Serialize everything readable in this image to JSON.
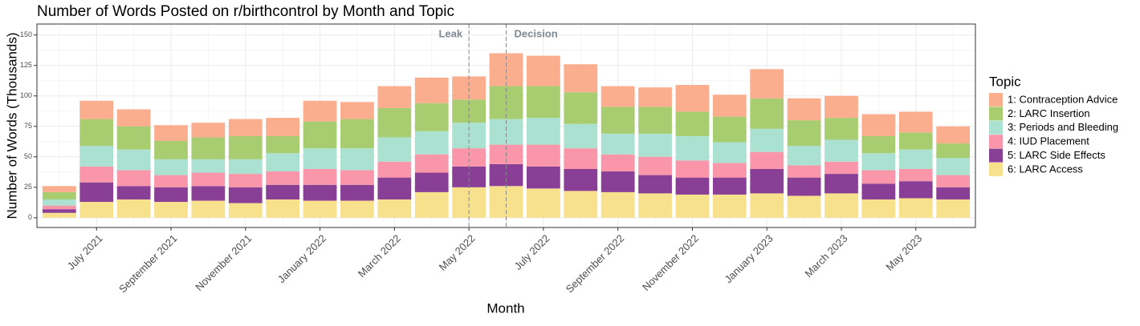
{
  "chart_data": {
    "type": "stacked_bar",
    "title": "Number of Words Posted on r/birthcontrol by Month and Topic",
    "x_label": "Month",
    "y_label": "Number of Words (Thousands)",
    "legend_title": "Topic",
    "legend_position": "right",
    "grid": true,
    "categories": [
      null,
      "July 2021",
      null,
      "September 2021",
      null,
      "November 2021",
      null,
      "January 2022",
      null,
      "March 2022",
      null,
      "May 2022",
      null,
      "July 2022",
      null,
      "September 2022",
      null,
      "November 2022",
      null,
      "January 2023",
      null,
      "March 2023",
      null,
      "May 2023",
      null
    ],
    "ylim": [
      -8,
      159
    ],
    "yticks": [
      0,
      25,
      50,
      75,
      100,
      125,
      150
    ],
    "annotations": [
      {
        "label": "Leak"
      },
      {
        "label": "Decision"
      }
    ],
    "series": [
      {
        "name": "6: LARC Access",
        "color": "#f8e18d",
        "values": [
          4,
          13,
          15,
          13,
          14,
          12,
          15,
          14,
          14,
          15,
          21,
          25,
          26,
          24,
          22,
          21,
          20,
          19,
          19,
          20,
          18,
          20,
          15,
          16,
          15
        ]
      },
      {
        "name": "5: LARC Side Effects",
        "color": "#8a3f96",
        "values": [
          3,
          16,
          11,
          12,
          12,
          13,
          12,
          13,
          13,
          18,
          16,
          17,
          18,
          18,
          18,
          17,
          15,
          14,
          14,
          20,
          15,
          16,
          13,
          14,
          10
        ]
      },
      {
        "name": "4: IUD Placement",
        "color": "#f996a9",
        "values": [
          3,
          13,
          13,
          10,
          11,
          11,
          11,
          13,
          12,
          13,
          15,
          15,
          16,
          18,
          17,
          14,
          15,
          14,
          12,
          14,
          10,
          10,
          11,
          10,
          10
        ]
      },
      {
        "name": "3: Periods and Bleeding",
        "color": "#abe1d1",
        "values": [
          5,
          17,
          17,
          13,
          11,
          12,
          15,
          17,
          18,
          20,
          19,
          21,
          21,
          22,
          20,
          17,
          19,
          20,
          17,
          19,
          16,
          18,
          14,
          16,
          14
        ]
      },
      {
        "name": "2: LARC Insertion",
        "color": "#a8cc70",
        "values": [
          6,
          22,
          19,
          15,
          18,
          19,
          14,
          22,
          24,
          24,
          23,
          19,
          27,
          26,
          26,
          22,
          22,
          20,
          21,
          25,
          21,
          18,
          14,
          14,
          12
        ]
      },
      {
        "name": "1: Contraception Advice",
        "color": "#fbae8e",
        "values": [
          5,
          15,
          14,
          13,
          12,
          14,
          15,
          17,
          14,
          18,
          21,
          19,
          27,
          25,
          23,
          17,
          16,
          22,
          18,
          24,
          18,
          18,
          18,
          17,
          14
        ]
      }
    ]
  }
}
